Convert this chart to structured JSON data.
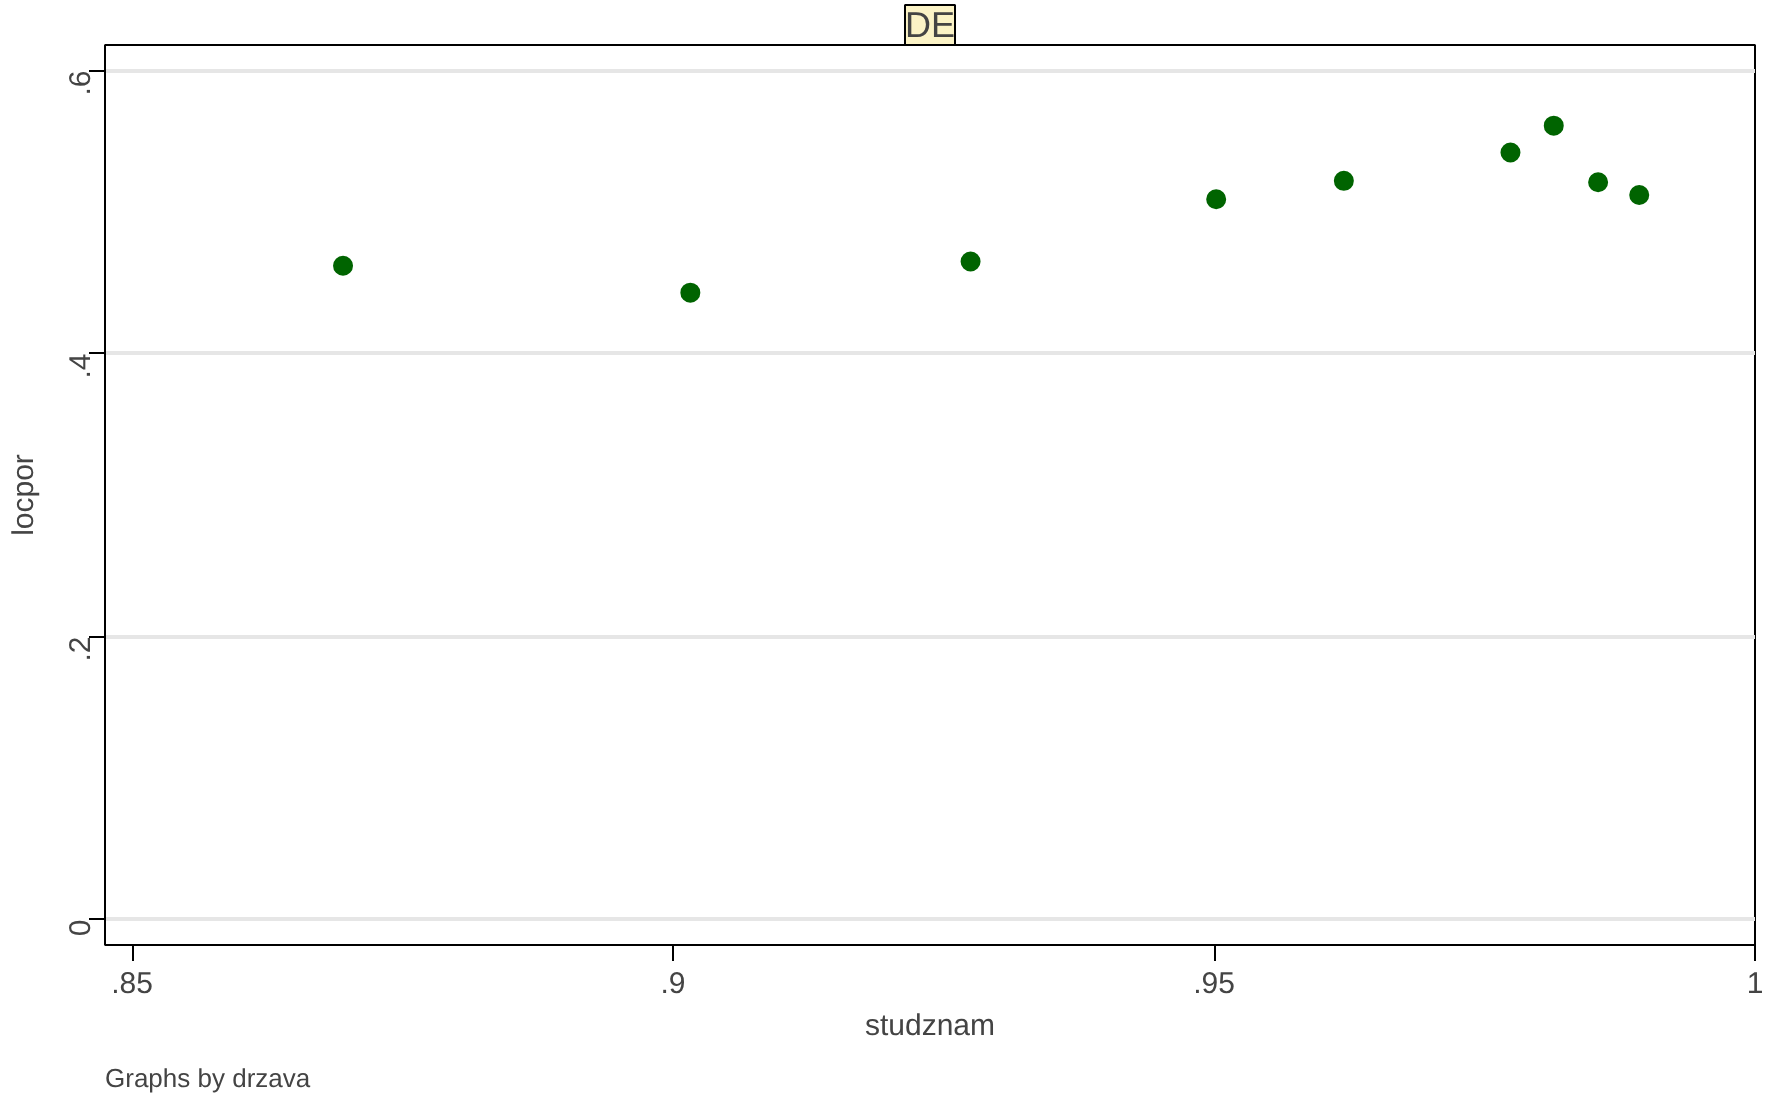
{
  "chart_data": {
    "type": "scatter",
    "title": "DE",
    "xlabel": "studznam",
    "ylabel": "locpor",
    "x": [
      0.8695,
      0.9016,
      0.9275,
      0.9502,
      0.962,
      0.9774,
      0.9814,
      0.9855,
      0.9893
    ],
    "series": [
      {
        "color": "#006400",
        "values": [
          0.462,
          0.443,
          0.465,
          0.509,
          0.522,
          0.542,
          0.561,
          0.521,
          0.512
        ]
      }
    ],
    "xlim": [
      0.8475,
      1.0
    ],
    "ylim": [
      -0.018,
      0.618
    ],
    "xticks": [
      {
        "value": 0.85,
        "label": ".85"
      },
      {
        "value": 0.9,
        "label": ".9"
      },
      {
        "value": 0.95,
        "label": ".95"
      },
      {
        "value": 1,
        "label": "1"
      }
    ],
    "yticks": [
      {
        "value": 0,
        "label": "0"
      },
      {
        "value": 0.2,
        "label": ".2"
      },
      {
        "value": 0.4,
        "label": ".4"
      },
      {
        "value": 0.6,
        "label": ".6"
      }
    ],
    "grid": "y",
    "marker": "circle",
    "annotations": [
      "Graphs by drzava"
    ]
  }
}
